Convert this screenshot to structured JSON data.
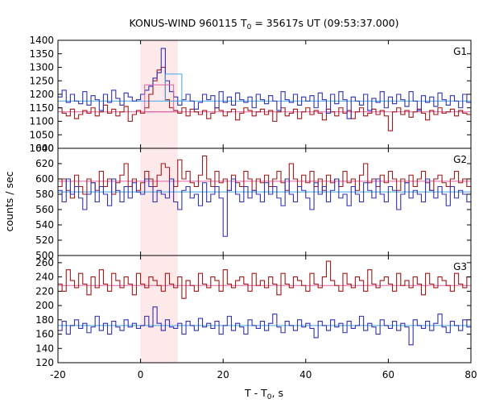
{
  "chart_data": {
    "type": "line",
    "title": "KONUS-WIND 960115 T",
    "title_sub": "0",
    "title_rest": " = 35617s UT (09:53:37.000)",
    "xlabel": "T - T",
    "xlabel_sub": "0",
    "xlabel_rest": ", s",
    "ylabel": "counts / sec",
    "xlim": [
      -20,
      80
    ],
    "x_ticks": [
      -20,
      0,
      20,
      40,
      60,
      80
    ],
    "shaded_interval": [
      0,
      9
    ],
    "colors": {
      "blue_series": "#3030b0",
      "red_series": "#a01818",
      "blue_background": "#40a8e8",
      "red_background": "#e060a0",
      "shade": "#fde8ea"
    },
    "panels": [
      {
        "label": "G1",
        "ylim": [
          1000,
          1400
        ],
        "y_ticks": [
          1000,
          1050,
          1100,
          1150,
          1200,
          1250,
          1300,
          1350,
          1400
        ],
        "blue_background_level": 1175,
        "red_background_level": 1135,
        "blue_peak_box": {
          "x": [
            6,
            10
          ],
          "y": 1275
        },
        "red_peak_box": {
          "x": [
            1,
            8
          ],
          "y": 1235
        },
        "blue": [
          1190,
          1215,
          1170,
          1200,
          1175,
          1165,
          1210,
          1160,
          1195,
          1180,
          1140,
          1200,
          1170,
          1215,
          1185,
          1160,
          1205,
          1190,
          1175,
          1180,
          1200,
          1215,
          1230,
          1260,
          1280,
          1370,
          1250,
          1210,
          1190,
          1160,
          1180,
          1200,
          1175,
          1145,
          1170,
          1200,
          1180,
          1195,
          1150,
          1210,
          1170,
          1190,
          1160,
          1205,
          1180,
          1170,
          1190,
          1150,
          1200,
          1180,
          1165,
          1195,
          1175,
          1140,
          1210,
          1180,
          1170,
          1200,
          1160,
          1190,
          1175,
          1195,
          1150,
          1205,
          1180,
          1130,
          1200,
          1165,
          1210,
          1180,
          1110,
          1190,
          1175,
          1160,
          1200,
          1140,
          1185,
          1170,
          1210,
          1150,
          1190,
          1165,
          1200,
          1180,
          1155,
          1210,
          1175,
          1140,
          1195,
          1170,
          1190,
          1155,
          1205,
          1180,
          1160,
          1195,
          1175,
          1150,
          1200,
          1170
        ],
        "red": [
          1150,
          1130,
          1120,
          1145,
          1110,
          1125,
          1140,
          1130,
          1150,
          1120,
          1135,
          1160,
          1130,
          1145,
          1120,
          1135,
          1155,
          1100,
          1125,
          1140,
          1130,
          1150,
          1200,
          1250,
          1290,
          1300,
          1180,
          1150,
          1140,
          1130,
          1150,
          1120,
          1145,
          1135,
          1125,
          1140,
          1110,
          1130,
          1150,
          1140,
          1120,
          1135,
          1145,
          1105,
          1130,
          1150,
          1140,
          1120,
          1135,
          1145,
          1125,
          1140,
          1100,
          1135,
          1150,
          1120,
          1130,
          1145,
          1110,
          1135,
          1150,
          1125,
          1140,
          1130,
          1105,
          1145,
          1135,
          1120,
          1150,
          1130,
          1140,
          1110,
          1135,
          1150,
          1120,
          1130,
          1145,
          1125,
          1140,
          1120,
          1065,
          1135,
          1150,
          1125,
          1140,
          1115,
          1135,
          1145,
          1130,
          1105,
          1140,
          1125,
          1150,
          1130,
          1135,
          1145,
          1120,
          1140,
          1130,
          1125
        ]
      },
      {
        "label": "G2",
        "ylim": [
          500,
          640
        ],
        "y_ticks": [
          500,
          520,
          540,
          560,
          580,
          600,
          620,
          640
        ],
        "blue_background_level": 583,
        "red_background_level": 597,
        "blue": [
          585,
          570,
          600,
          580,
          590,
          575,
          560,
          580,
          595,
          570,
          590,
          580,
          565,
          600,
          585,
          570,
          590,
          575,
          595,
          583,
          580,
          600,
          590,
          570,
          585,
          580,
          575,
          600,
          570,
          560,
          585,
          590,
          575,
          580,
          565,
          595,
          570,
          580,
          590,
          575,
          525,
          585,
          600,
          580,
          570,
          590,
          575,
          585,
          580,
          570,
          595,
          580,
          590,
          575,
          565,
          600,
          580,
          570,
          590,
          585,
          575,
          560,
          595,
          580,
          590,
          570,
          585,
          600,
          575,
          580,
          565,
          590,
          580,
          570,
          595,
          585,
          575,
          600,
          580,
          570,
          590,
          585,
          560,
          580,
          595,
          575,
          585,
          580,
          570,
          600,
          585,
          575,
          590,
          580,
          565,
          590,
          575,
          585,
          580,
          570
        ],
        "red": [
          590,
          600,
          585,
          575,
          605,
          590,
          580,
          600,
          595,
          585,
          610,
          590,
          600,
          580,
          595,
          605,
          620,
          590,
          600,
          585,
          595,
          610,
          600,
          590,
          605,
          620,
          615,
          600,
          590,
          625,
          600,
          610,
          595,
          590,
          605,
          630,
          600,
          590,
          610,
          595,
          600,
          585,
          605,
          595,
          590,
          610,
          600,
          585,
          600,
          595,
          605,
          590,
          600,
          610,
          595,
          585,
          620,
          600,
          590,
          605,
          595,
          610,
          590,
          600,
          585,
          605,
          595,
          600,
          590,
          610,
          595,
          600,
          585,
          605,
          620,
          595,
          600,
          590,
          605,
          595,
          610,
          600,
          585,
          600,
          595,
          605,
          590,
          600,
          610,
          595,
          585,
          600,
          605,
          595,
          590,
          600,
          610,
          595,
          600,
          590
        ]
      },
      {
        "label": "G3",
        "ylim": [
          120,
          270
        ],
        "y_ticks": [
          120,
          140,
          160,
          180,
          200,
          220,
          240,
          260
        ],
        "blue_background_level": 172,
        "red_background_level": 228,
        "blue": [
          165,
          178,
          160,
          172,
          180,
          168,
          175,
          162,
          170,
          185,
          165,
          175,
          160,
          178,
          170,
          165,
          180,
          170,
          175,
          168,
          172,
          185,
          170,
          198,
          175,
          165,
          180,
          170,
          168,
          175,
          160,
          178,
          172,
          165,
          182,
          170,
          175,
          168,
          178,
          160,
          172,
          185,
          165,
          175,
          170,
          160,
          180,
          172,
          168,
          178,
          165,
          175,
          188,
          170,
          162,
          178,
          172,
          165,
          180,
          170,
          175,
          168,
          155,
          178,
          172,
          165,
          180,
          170,
          175,
          162,
          178,
          168,
          172,
          185,
          165,
          175,
          170,
          160,
          180,
          172,
          168,
          178,
          165,
          175,
          170,
          145,
          180,
          172,
          168,
          178,
          165,
          175,
          188,
          170,
          162,
          178,
          172,
          165,
          180,
          170
        ],
        "red": [
          230,
          220,
          250,
          235,
          225,
          245,
          230,
          215,
          240,
          225,
          250,
          230,
          220,
          245,
          235,
          225,
          240,
          230,
          215,
          245,
          230,
          225,
          240,
          235,
          228,
          220,
          245,
          230,
          225,
          240,
          210,
          235,
          228,
          220,
          245,
          230,
          225,
          240,
          235,
          220,
          250,
          230,
          225,
          235,
          240,
          230,
          220,
          245,
          228,
          235,
          225,
          240,
          230,
          215,
          245,
          230,
          225,
          240,
          235,
          228,
          220,
          245,
          230,
          225,
          240,
          262,
          235,
          228,
          220,
          245,
          230,
          225,
          240,
          235,
          220,
          250,
          230,
          225,
          235,
          240,
          230,
          220,
          245,
          228,
          235,
          225,
          240,
          230,
          215,
          245,
          230,
          225,
          240,
          235,
          228,
          220,
          245,
          230,
          225,
          240
        ]
      }
    ]
  }
}
